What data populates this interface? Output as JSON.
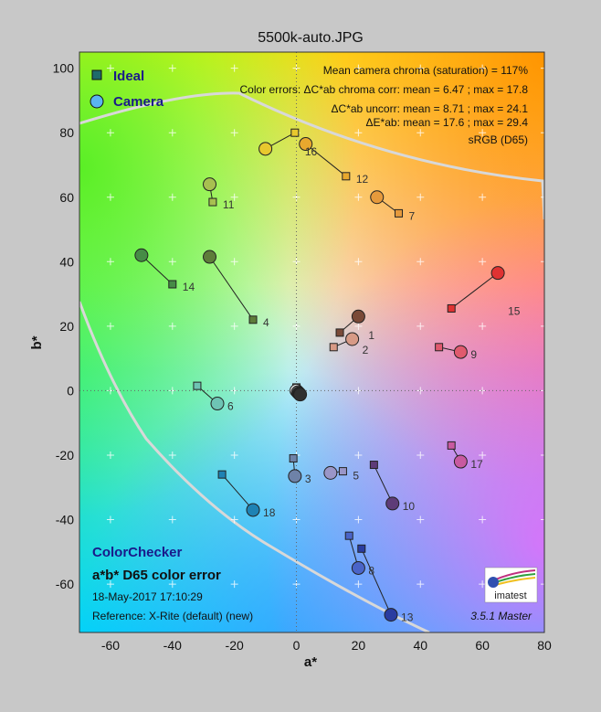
{
  "colors": {
    "frame_bg": "#c8c8c8",
    "grid": "#ffffff",
    "gamut_line": "#d8d8d8",
    "legend_text": "#1a1a8a",
    "title_text": "#1a1a8a",
    "ideal_marker": "#1f6b6b",
    "camera_marker": "#5ab4f0"
  },
  "chart_data": {
    "type": "scatter",
    "title": "5500k-auto.JPG",
    "xlabel": "a*",
    "ylabel": "b*",
    "xlim": [
      -70,
      80
    ],
    "ylim": [
      -75,
      105
    ],
    "xticks": [
      -60,
      -40,
      -20,
      0,
      20,
      40,
      60,
      80
    ],
    "yticks": [
      -60,
      -40,
      -20,
      0,
      20,
      40,
      60,
      80,
      100
    ],
    "grid": true,
    "legend": {
      "placement": "top-left",
      "entries": [
        {
          "name": "Ideal",
          "marker": "square"
        },
        {
          "name": "Camera",
          "marker": "circle"
        }
      ]
    },
    "info_lines": [
      "Mean camera chroma (saturation) = 117%",
      "Color errors: ΔC*ab chroma corr:  mean = 6.47 ;  max = 17.8",
      "ΔC*ab uncorr:  mean = 8.71 ;  max = 24.1",
      "ΔE*ab:  mean = 17.6 ;  max = 29.4",
      "sRGB (D65)"
    ],
    "caption": {
      "line1": "ColorChecker",
      "line2": "a*b* D65 color error",
      "line3": "18-May-2017 17:10:29",
      "line4": "Reference: X-Rite (default) (new)"
    },
    "version": "3.5.1   Master",
    "logo_text": "imatest",
    "patches": [
      {
        "id": "1",
        "ideal": [
          14,
          18
        ],
        "camera": [
          20,
          23
        ],
        "color": "#7a4a38"
      },
      {
        "id": "2",
        "ideal": [
          12,
          13.5
        ],
        "camera": [
          18,
          16
        ],
        "color": "#d79a86"
      },
      {
        "id": "3",
        "ideal": [
          -1,
          -21
        ],
        "camera": [
          -0.5,
          -26.5
        ],
        "color": "#6e82a8"
      },
      {
        "id": "4",
        "ideal": [
          -14,
          22
        ],
        "camera": [
          -28,
          41.5
        ],
        "color": "#5e7c3a"
      },
      {
        "id": "5",
        "ideal": [
          15,
          -25
        ],
        "camera": [
          11,
          -25.5
        ],
        "color": "#9a96c8"
      },
      {
        "id": "6",
        "ideal": [
          -32,
          1.5
        ],
        "camera": [
          -25.5,
          -4
        ],
        "color": "#6ec4b4"
      },
      {
        "id": "7",
        "ideal": [
          33,
          55
        ],
        "camera": [
          26,
          60
        ],
        "color": "#e69a3c"
      },
      {
        "id": "8",
        "ideal": [
          17,
          -45
        ],
        "camera": [
          20,
          -55
        ],
        "color": "#4a64c8"
      },
      {
        "id": "9",
        "ideal": [
          46,
          13.5
        ],
        "camera": [
          53,
          12
        ],
        "color": "#e05a6e"
      },
      {
        "id": "10",
        "ideal": [
          25,
          -23
        ],
        "camera": [
          31,
          -35
        ],
        "color": "#5e3c78"
      },
      {
        "id": "11",
        "ideal": [
          -27,
          58.5
        ],
        "camera": [
          -28,
          64
        ],
        "color": "#a8c050"
      },
      {
        "id": "12",
        "ideal": [
          16,
          66.5
        ],
        "camera": [
          3,
          76.5
        ],
        "color": "#e8a82e"
      },
      {
        "id": "13",
        "ideal": [
          21,
          -49
        ],
        "camera": [
          30.5,
          -69.5
        ],
        "color": "#2a3ca0"
      },
      {
        "id": "14",
        "ideal": [
          -40,
          33
        ],
        "camera": [
          -50,
          42
        ],
        "color": "#468c46"
      },
      {
        "id": "15",
        "ideal": [
          50,
          25.5
        ],
        "camera": [
          65,
          36.5
        ],
        "color": "#e03232"
      },
      {
        "id": "16",
        "ideal": [
          -0.5,
          80
        ],
        "camera": [
          -10,
          75
        ],
        "color": "#e8c82e"
      },
      {
        "id": "17",
        "ideal": [
          50,
          -17
        ],
        "camera": [
          53,
          -22
        ],
        "color": "#c85aa0"
      },
      {
        "id": "18",
        "ideal": [
          -24,
          -26
        ],
        "camera": [
          -14,
          -37
        ],
        "color": "#1e82b4"
      },
      {
        "id": "19",
        "ideal": [
          0,
          1
        ],
        "camera": [
          0,
          0
        ],
        "color": "#f2f2f2"
      },
      {
        "id": "20",
        "ideal": [
          0,
          0.5
        ],
        "camera": [
          0.5,
          -0.5
        ],
        "color": "#c8c8c8"
      },
      {
        "id": "21",
        "ideal": [
          0,
          0
        ],
        "camera": [
          0.5,
          -0.5
        ],
        "color": "#a0a0a0"
      },
      {
        "id": "22",
        "ideal": [
          0,
          0
        ],
        "camera": [
          0.8,
          -0.8
        ],
        "color": "#7a7a7a"
      },
      {
        "id": "23",
        "ideal": [
          0,
          0
        ],
        "camera": [
          1,
          -1
        ],
        "color": "#555555"
      },
      {
        "id": "24",
        "ideal": [
          0,
          0
        ],
        "camera": [
          1.2,
          -1.2
        ],
        "color": "#303030"
      }
    ]
  }
}
